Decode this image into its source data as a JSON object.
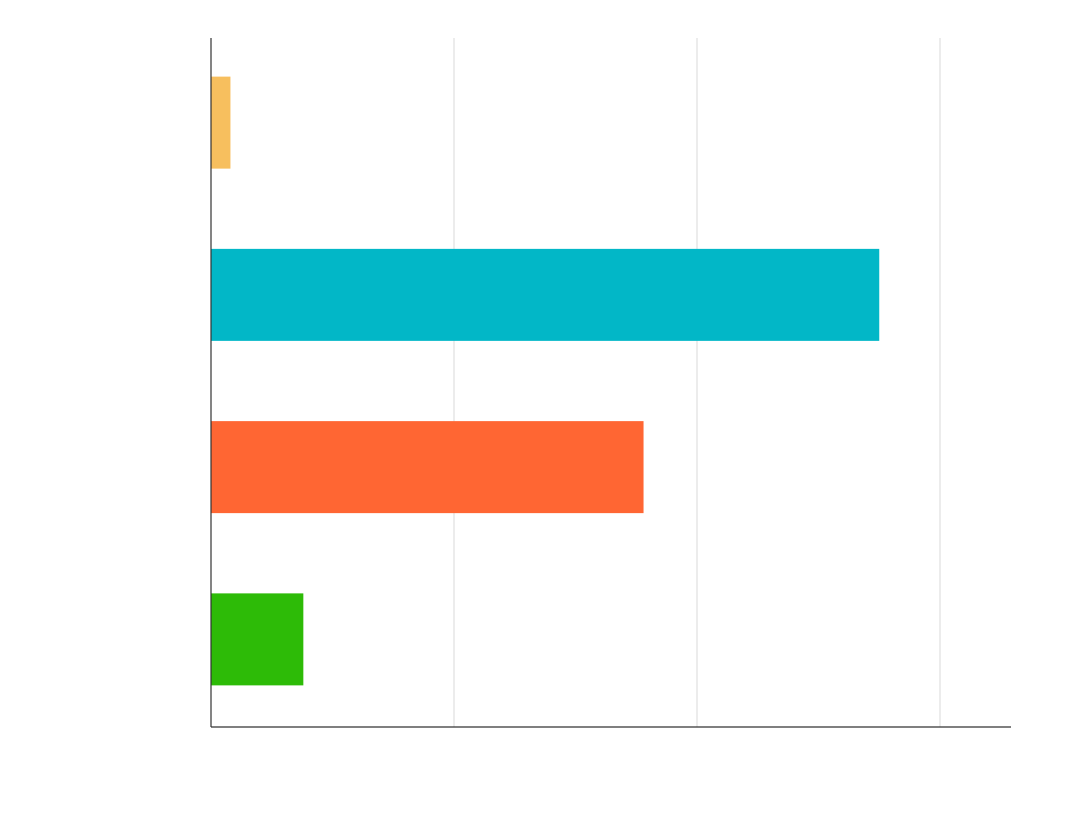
{
  "chart_data": {
    "type": "bar",
    "orientation": "horizontal",
    "title": "",
    "xlabel": "",
    "ylabel": "",
    "xlim": [
      0,
      3.3
    ],
    "grid": true,
    "legend": "none",
    "x_gridlines": [
      1,
      2,
      3
    ],
    "bars": [
      {
        "value": 0.08,
        "color": "#f7bf5e"
      },
      {
        "value": 2.75,
        "color": "#02b7c7"
      },
      {
        "value": 1.78,
        "color": "#ff6633"
      },
      {
        "value": 0.38,
        "color": "#2dbb07"
      }
    ]
  }
}
